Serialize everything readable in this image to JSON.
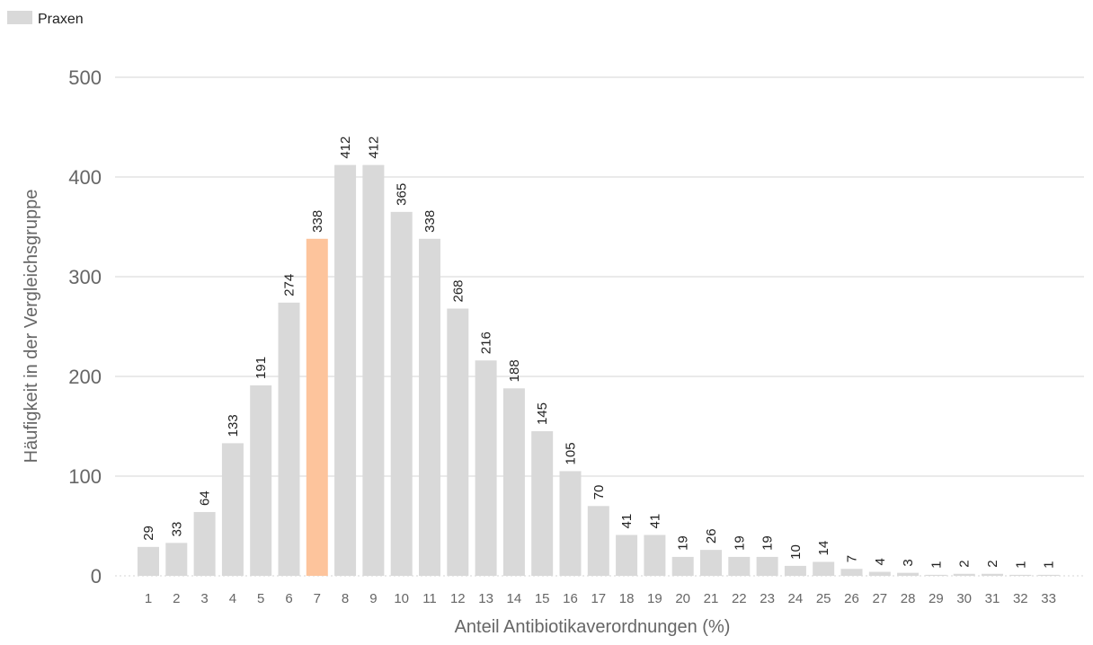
{
  "chart_data": {
    "type": "bar",
    "legend": {
      "label": "Praxen",
      "placement": "top-left"
    },
    "categories": [
      "1",
      "2",
      "3",
      "4",
      "5",
      "6",
      "7",
      "8",
      "9",
      "10",
      "11",
      "12",
      "13",
      "14",
      "15",
      "16",
      "17",
      "18",
      "19",
      "20",
      "21",
      "22",
      "23",
      "24",
      "25",
      "26",
      "27",
      "28",
      "29",
      "30",
      "31",
      "32",
      "33"
    ],
    "values": [
      29,
      33,
      64,
      133,
      191,
      274,
      338,
      412,
      412,
      365,
      338,
      268,
      216,
      188,
      145,
      105,
      70,
      41,
      41,
      19,
      26,
      19,
      19,
      10,
      14,
      7,
      4,
      3,
      1,
      2,
      2,
      1,
      1
    ],
    "highlight_category": "7",
    "xlabel": "Anteil Antibiotikaverordnungen (%)",
    "ylabel": "Häufigkeit in der Vergleichsgruppe",
    "ylim": [
      0,
      500
    ],
    "yticks": [
      0,
      100,
      200,
      300,
      400,
      500
    ],
    "grid": true,
    "colors": {
      "bar": "#d9d9d9",
      "highlight": "#fdc49c",
      "grid": "#d6d6d6",
      "axis_text": "#666666",
      "label_text": "#222222"
    }
  }
}
